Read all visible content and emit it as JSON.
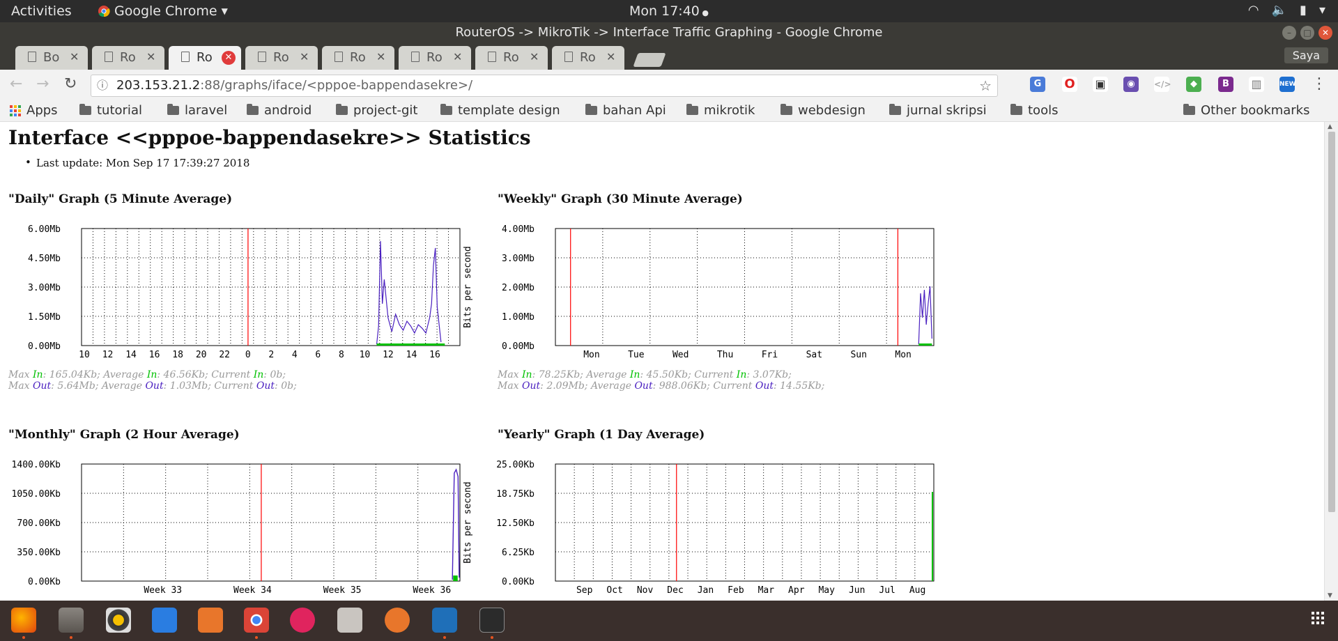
{
  "topbar": {
    "activities": "Activities",
    "app_name": "Google Chrome",
    "clock": "Mon 17:40"
  },
  "window": {
    "title": "RouterOS -> MikroTik -> Interface Traffic Graphing - Google Chrome"
  },
  "tabs": [
    {
      "label": "Bo"
    },
    {
      "label": "Ro"
    },
    {
      "label": "Ro",
      "active": true
    },
    {
      "label": "Ro"
    },
    {
      "label": "Ro"
    },
    {
      "label": "Ro"
    },
    {
      "label": "Ro"
    },
    {
      "label": "Ro"
    }
  ],
  "profile": "Saya",
  "address": {
    "host": "203.153.21.2",
    "path": ":88/graphs/iface/<pppoe-bappendasekre>/"
  },
  "bookmarks": {
    "apps": "Apps",
    "folders": [
      "tutorial",
      "laravel",
      "android",
      "project-git",
      "template design",
      "bahan Api",
      "mikrotik",
      "webdesign",
      "jurnal skripsi",
      "tools"
    ],
    "other": "Other bookmarks"
  },
  "page": {
    "heading": "Interface <<pppoe-bappendasekre>> Statistics",
    "last_update": "Last update: Mon Sep 17 17:39:27 2018"
  },
  "graphs": [
    {
      "title": "\"Daily\" Graph (5 Minute Average)",
      "ylabels": [
        "6.00Mb",
        "4.50Mb",
        "3.00Mb",
        "1.50Mb",
        "0.00Mb"
      ],
      "xlabels": [
        "10",
        "12",
        "14",
        "16",
        "18",
        "20",
        "22",
        "0",
        "2",
        "4",
        "6",
        "8",
        "10",
        "12",
        "14",
        "16"
      ],
      "ylabel_side": "",
      "stats": {
        "max_in": "165.04Kb",
        "avg_in": "46.56Kb",
        "cur_in": "0b",
        "max_out": "5.64Mb",
        "avg_out": "1.03Mb",
        "cur_out": "0b"
      }
    },
    {
      "title": "\"Weekly\" Graph (30 Minute Average)",
      "ylabels": [
        "4.00Mb",
        "3.00Mb",
        "2.00Mb",
        "1.00Mb",
        "0.00Mb"
      ],
      "xlabels": [
        "Mon",
        "Tue",
        "Wed",
        "Thu",
        "Fri",
        "Sat",
        "Sun",
        "Mon"
      ],
      "ylabel_side": "Bits per second",
      "stats": {
        "max_in": "78.25Kb",
        "avg_in": "45.50Kb",
        "cur_in": "3.07Kb",
        "max_out": "2.09Mb",
        "avg_out": "988.06Kb",
        "cur_out": "14.55Kb"
      }
    },
    {
      "title": "\"Monthly\" Graph (2 Hour Average)",
      "ylabels": [
        "1400.00Kb",
        "1050.00Kb",
        "700.00Kb",
        "350.00Kb",
        "0.00Kb"
      ],
      "xlabels": [
        "Week 33",
        "Week 34",
        "Week 35",
        "Week 36"
      ],
      "ylabel_side": ""
    },
    {
      "title": "\"Yearly\" Graph (1 Day Average)",
      "ylabels": [
        "25.00Kb",
        "18.75Kb",
        "12.50Kb",
        "6.25Kb",
        "0.00Kb"
      ],
      "xlabels": [
        "Sep",
        "Oct",
        "Nov",
        "Dec",
        "Jan",
        "Feb",
        "Mar",
        "Apr",
        "May",
        "Jun",
        "Jul",
        "Aug"
      ],
      "ylabel_side": "Bits per second"
    }
  ],
  "stat_words": {
    "max": "Max",
    "average": "Average",
    "current": "Current",
    "in": "In",
    "out": "Out"
  },
  "colors": {
    "in": "#00c000",
    "out": "#4a20c0",
    "divider": "#ff0000",
    "tab_close": "#e03b3b"
  },
  "dock": [
    "firefox-icon",
    "files-icon",
    "rhythmbox-icon",
    "writer-icon",
    "software-icon",
    "chrome-icon",
    "flickr-icon",
    "camera-icon",
    "tools-icon",
    "vscode-icon",
    "terminal-icon"
  ]
}
